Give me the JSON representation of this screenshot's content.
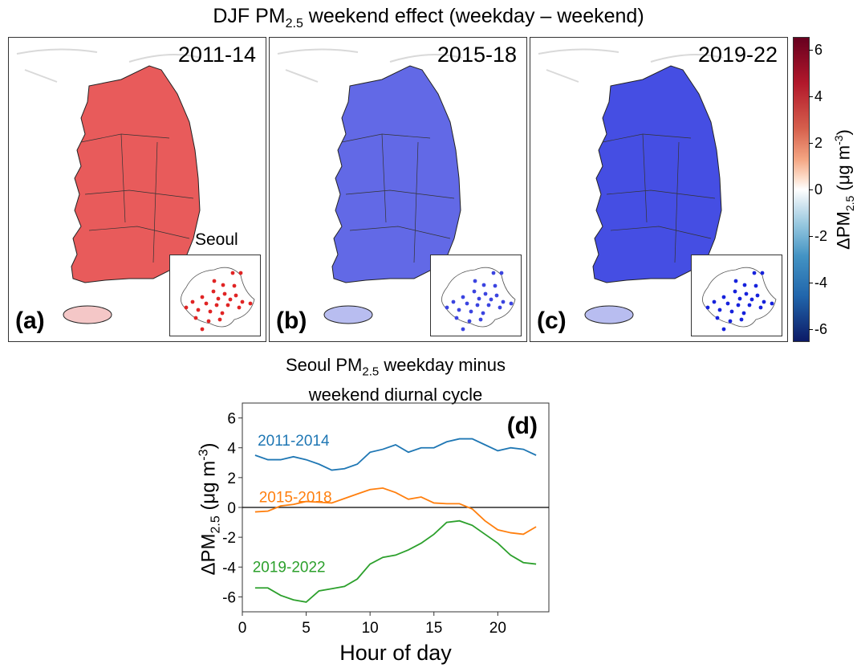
{
  "figure": {
    "title_prefix": "DJF PM",
    "title_sub": "2.5",
    "title_suffix": " weekend effect (weekday – weekend)",
    "panels": [
      {
        "label": "(a)",
        "period": "2011-14",
        "color": "#e02424"
      },
      {
        "label": "(b)",
        "period": "2015-18",
        "color": "#3b44e0"
      },
      {
        "label": "(c)",
        "period": "2019-22",
        "color": "#1622dc"
      }
    ],
    "inset_label": "Seoul",
    "colorbar": {
      "label_prefix": "ΔPM",
      "label_sub": "2.5",
      "label_unit": " (μg m",
      "label_unit_sup": "-3",
      "label_close": ")",
      "ticks": [
        "6",
        "4",
        "2",
        "0",
        "-2",
        "-4",
        "-6"
      ],
      "tick_values": [
        6,
        4,
        2,
        0,
        -2,
        -4,
        -6
      ],
      "range": [
        -6.5,
        6.5
      ]
    }
  },
  "chart_data": {
    "type": "line",
    "panel_label": "(d)",
    "title_line1_prefix": "Seoul PM",
    "title_line1_sub": "2.5",
    "title_line1_suffix": " weekday minus",
    "title_line2": "weekend diurnal cycle",
    "xlabel": "Hour of day",
    "ylabel_prefix": "ΔPM",
    "ylabel_sub": "2.5",
    "ylabel_unit": " (μg m",
    "ylabel_unit_sup": "-3",
    "ylabel_close": ")",
    "xlim": [
      0,
      24
    ],
    "ylim": [
      -7,
      7
    ],
    "xticks": [
      0,
      5,
      10,
      15,
      20
    ],
    "yticks": [
      -6,
      -4,
      -2,
      0,
      2,
      4,
      6
    ],
    "zero_line": true,
    "x": [
      1,
      2,
      3,
      4,
      5,
      6,
      7,
      8,
      9,
      10,
      11,
      12,
      13,
      14,
      15,
      16,
      17,
      18,
      19,
      20,
      21,
      22,
      23
    ],
    "series": [
      {
        "name": "2011-2014",
        "color": "#1f77b4",
        "values": [
          3.5,
          3.2,
          3.2,
          3.4,
          3.2,
          2.9,
          2.5,
          2.6,
          2.9,
          3.7,
          3.9,
          4.2,
          3.7,
          4.0,
          4.0,
          4.4,
          4.6,
          4.6,
          4.2,
          3.8,
          4.0,
          3.9,
          3.5
        ]
      },
      {
        "name": "2015-2018",
        "color": "#ff7f0e",
        "values": [
          -0.3,
          -0.25,
          0.1,
          0.2,
          0.4,
          0.35,
          0.3,
          0.6,
          0.9,
          1.2,
          1.3,
          1.0,
          0.55,
          0.7,
          0.3,
          0.25,
          0.25,
          -0.1,
          -0.9,
          -1.5,
          -1.7,
          -1.8,
          -1.3
        ]
      },
      {
        "name": "2019-2022",
        "color": "#2ca02c",
        "values": [
          -5.4,
          -5.4,
          -5.9,
          -6.2,
          -6.35,
          -5.6,
          -5.45,
          -5.3,
          -4.8,
          -3.8,
          -3.35,
          -3.2,
          -2.85,
          -2.4,
          -1.8,
          -1.0,
          -0.9,
          -1.2,
          -1.8,
          -2.4,
          -3.2,
          -3.7,
          -3.8
        ]
      }
    ]
  }
}
